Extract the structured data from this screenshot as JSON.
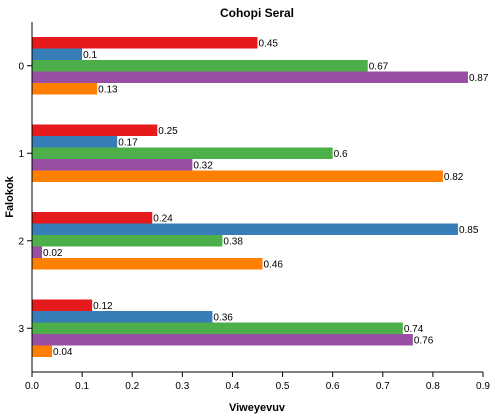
{
  "chart_data": {
    "type": "bar",
    "orientation": "horizontal",
    "title": "Cohopi Seral",
    "xlabel": "Viweyevuv",
    "ylabel": "Falokok",
    "xlim": [
      0,
      0.9
    ],
    "xticks": [
      "0.0",
      "0.1",
      "0.2",
      "0.3",
      "0.4",
      "0.5",
      "0.6",
      "0.7",
      "0.8",
      "0.9"
    ],
    "categories": [
      "0",
      "1",
      "2",
      "3"
    ],
    "grid": false,
    "legend": "none",
    "series": [
      {
        "color": "#e41a1c",
        "values": [
          0.45,
          0.25,
          0.24,
          0.12
        ],
        "labels": [
          "0.45",
          "0.25",
          "0.24",
          "0.12"
        ]
      },
      {
        "color": "#377eb8",
        "values": [
          0.1,
          0.17,
          0.85,
          0.36
        ],
        "labels": [
          "0.1",
          "0.17",
          "0.85",
          "0.36"
        ]
      },
      {
        "color": "#4daf4a",
        "values": [
          0.67,
          0.6,
          0.38,
          0.74
        ],
        "labels": [
          "0.67",
          "0.6",
          "0.38",
          "0.74"
        ]
      },
      {
        "color": "#984ea3",
        "values": [
          0.87,
          0.32,
          0.02,
          0.76
        ],
        "labels": [
          "0.87",
          "0.32",
          "0.02",
          "0.76"
        ]
      },
      {
        "color": "#ff7f00",
        "values": [
          0.13,
          0.82,
          0.46,
          0.04
        ],
        "labels": [
          "0.13",
          "0.82",
          "0.46",
          "0.04"
        ]
      }
    ]
  }
}
